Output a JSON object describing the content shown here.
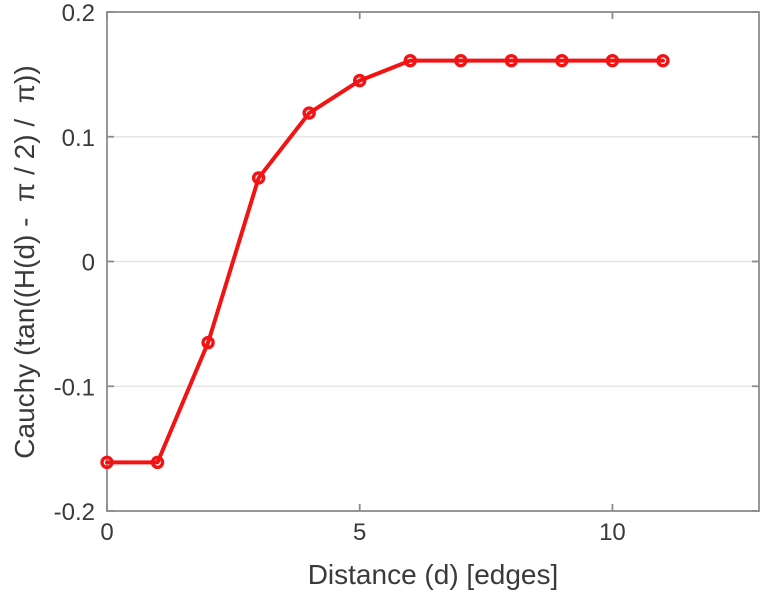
{
  "chart_data": {
    "type": "line",
    "xlabel": "Distance (d) [edges]",
    "ylabel": "Cauchy (tan((H(d) -  π / 2) /  π))",
    "x": [
      0,
      1,
      2,
      3,
      4,
      5,
      6,
      7,
      8,
      9,
      10,
      11
    ],
    "y": [
      -0.161,
      -0.161,
      -0.065,
      0.067,
      0.119,
      0.145,
      0.161,
      0.161,
      0.161,
      0.161,
      0.161,
      0.161
    ],
    "xlim": [
      0,
      12.9
    ],
    "ylim": [
      -0.2,
      0.2
    ],
    "x_ticks": [
      0,
      5,
      10
    ],
    "x_tick_labels": [
      "0",
      "5",
      "10"
    ],
    "y_ticks": [
      -0.2,
      -0.1,
      0,
      0.1,
      0.2
    ],
    "y_tick_labels": [
      "-0.2",
      "-0.1",
      "0",
      "0.1",
      "0.2"
    ],
    "grid": "horizontal-only",
    "legend": null,
    "marker": "open-circle",
    "line_color": "#f21414",
    "axis_color": "#8c8c8c",
    "grid_color": "#e2e2e2",
    "text_color": "#3a3a3a",
    "background": "#ffffff"
  }
}
